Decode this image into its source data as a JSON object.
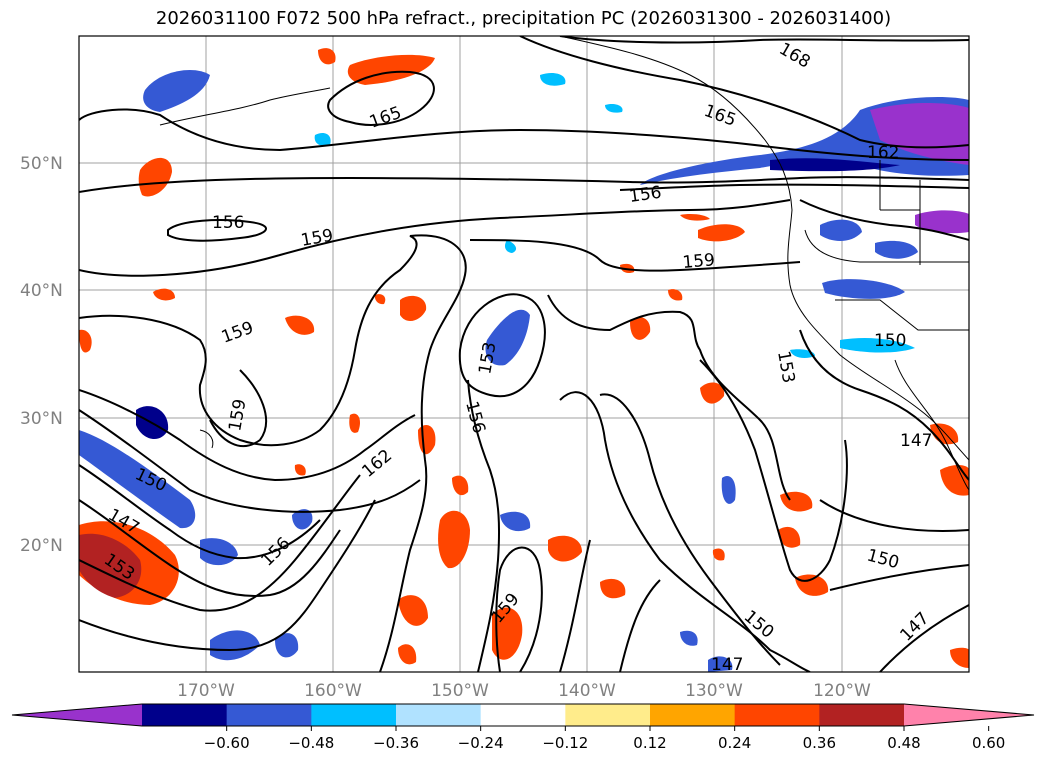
{
  "title": "2026031100 F072 500 hPa refract., precipitation PC (2026031300 - 2026031400)",
  "lat_labels": [
    "50°N",
    "40°N",
    "30°N",
    "20°N"
  ],
  "lon_labels": [
    "170°W",
    "160°W",
    "150°W",
    "140°W",
    "130°W",
    "120°W"
  ],
  "contour_labels": [
    "168",
    "165",
    "165",
    "162",
    "156",
    "156",
    "159",
    "159",
    "159",
    "159",
    "153",
    "156",
    "162",
    "150",
    "147",
    "153",
    "156",
    "159",
    "150",
    "150",
    "147",
    "147",
    "153",
    "150",
    "147"
  ],
  "colorbar": {
    "ticks": [
      "−0.60",
      "−0.48",
      "−0.36",
      "−0.24",
      "−0.12",
      "0.12",
      "0.24",
      "0.36",
      "0.48",
      "0.60"
    ],
    "colors": [
      "#9932cc",
      "#00008b",
      "#3559d4",
      "#00bfff",
      "#b0e2ff",
      "#ffffff",
      "#ffec8b",
      "#ffa500",
      "#ff4500",
      "#b22222",
      "#ff82ab"
    ]
  },
  "chart_data": {
    "type": "map",
    "variable": "500 hPa refractivity contours with precipitation principal component shading",
    "lon_range": [
      -180,
      -110
    ],
    "lat_range": [
      10,
      60
    ],
    "contour_values": [
      147,
      150,
      153,
      156,
      159,
      162,
      165,
      168
    ],
    "shading_levels": [
      -0.6,
      -0.48,
      -0.36,
      -0.24,
      -0.12,
      0.12,
      0.24,
      0.36,
      0.48,
      0.6
    ]
  }
}
